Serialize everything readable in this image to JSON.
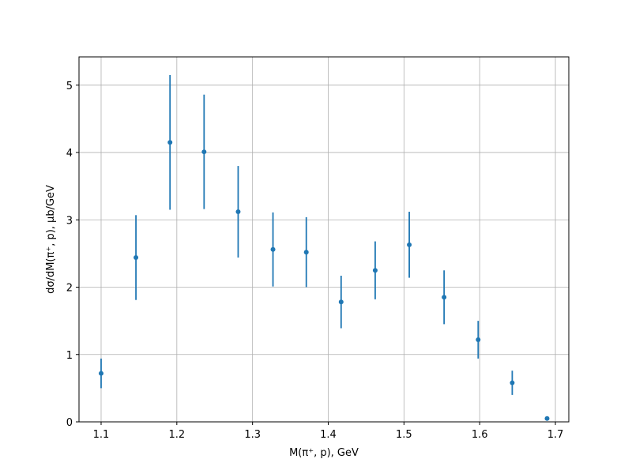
{
  "chart_data": {
    "type": "errorbar",
    "x_label": "M(π⁺, p), GeV",
    "y_label": "dσ/dM(π⁺, p), μb/GeV",
    "series": [
      {
        "color": "#1f77b4",
        "x": [
          1.1,
          1.146,
          1.191,
          1.236,
          1.281,
          1.327,
          1.371,
          1.417,
          1.462,
          1.507,
          1.553,
          1.598,
          1.643,
          1.689
        ],
        "values": [
          0.72,
          2.44,
          4.15,
          4.01,
          3.12,
          2.56,
          2.52,
          1.78,
          2.25,
          2.63,
          1.85,
          1.22,
          0.58,
          0.05
        ],
        "errors": [
          0.22,
          0.63,
          1.0,
          0.85,
          0.68,
          0.55,
          0.52,
          0.39,
          0.43,
          0.49,
          0.4,
          0.28,
          0.18,
          0.02
        ]
      }
    ],
    "xlim": [
      1.0708,
      1.7177
    ],
    "xticks": [
      1.1,
      1.2,
      1.3,
      1.4,
      1.5,
      1.6,
      1.7
    ],
    "ylim": [
      0,
      5.42
    ],
    "yticks": [
      0,
      1,
      2,
      3,
      4,
      5
    ],
    "grid": true
  }
}
